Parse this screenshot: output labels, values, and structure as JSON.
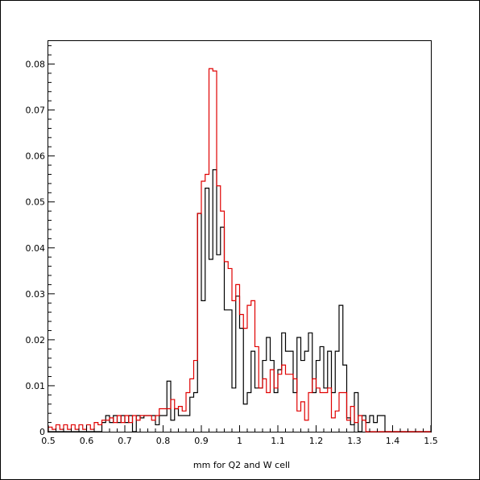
{
  "chart_data": {
    "type": "histogram",
    "title": "",
    "xlabel": "mm for Q2 and W cell",
    "ylabel": "",
    "xlim": [
      0.5,
      1.5
    ],
    "ylim": [
      0,
      0.085
    ],
    "xticks": [
      "0.5",
      "0.6",
      "0.7",
      "0.8",
      "0.9",
      "1",
      "1.1",
      "1.2",
      "1.3",
      "1.4",
      "1.5"
    ],
    "yticks": [
      "0",
      "0.01",
      "0.02",
      "0.03",
      "0.04",
      "0.05",
      "0.06",
      "0.07",
      "0.08"
    ],
    "bin_start": 0.5,
    "bin_width": 0.01,
    "grid": false,
    "legend": "none",
    "series": [
      {
        "color": "#000000",
        "values": [
          0,
          0,
          0,
          0,
          0,
          0,
          0,
          0,
          0,
          0,
          0,
          0,
          0,
          0,
          0.002,
          0.0035,
          0.002,
          0.0035,
          0.002,
          0.0035,
          0.002,
          0.0035,
          0,
          0.0035,
          0.003,
          0.0035,
          0.0035,
          0.0035,
          0.0015,
          0.0035,
          0.0035,
          0.011,
          0.0025,
          0.005,
          0.0035,
          0.0035,
          0.0035,
          0.0075,
          0.0085,
          0.0475,
          0.0285,
          0.053,
          0.0375,
          0.057,
          0.0385,
          0.0445,
          0.0265,
          0.0265,
          0.0095,
          0.0295,
          0.0225,
          0.006,
          0.0085,
          0.0175,
          0.0095,
          0.0095,
          0.0155,
          0.0205,
          0.0155,
          0.0085,
          0.0135,
          0.0215,
          0.0175,
          0.0175,
          0.0085,
          0.0205,
          0.0155,
          0.0175,
          0.0215,
          0.0085,
          0.0155,
          0.0185,
          0.0095,
          0.0175,
          0.0085,
          0.0175,
          0.0275,
          0.0145,
          0.003,
          0.0015,
          0.0085,
          0,
          0.0035,
          0.002,
          0.0035,
          0.002,
          0.0035,
          0.0035,
          0,
          0,
          0,
          0,
          0,
          0,
          0,
          0,
          0,
          0,
          0,
          0
        ]
      },
      {
        "color": "#e00000",
        "values": [
          0.001,
          0.0005,
          0.0015,
          0.0005,
          0.0015,
          0.0005,
          0.0015,
          0.0005,
          0.0015,
          0.0005,
          0.0015,
          0.0005,
          0.002,
          0.0015,
          0.0025,
          0.0025,
          0.003,
          0.002,
          0.0035,
          0.002,
          0.0035,
          0.002,
          0.0035,
          0.0025,
          0.0035,
          0.0035,
          0.0035,
          0.0025,
          0.0035,
          0.005,
          0.005,
          0.005,
          0.007,
          0.005,
          0.0055,
          0.0045,
          0.0085,
          0.0115,
          0.0155,
          0.0475,
          0.0545,
          0.056,
          0.079,
          0.0785,
          0.0535,
          0.048,
          0.037,
          0.0355,
          0.0285,
          0.032,
          0.0255,
          0.0225,
          0.0275,
          0.0285,
          0.0185,
          0.0095,
          0.0115,
          0.0085,
          0.0135,
          0.0095,
          0.0125,
          0.0145,
          0.0125,
          0.0125,
          0.0115,
          0.0045,
          0.0065,
          0.0025,
          0.0085,
          0.0115,
          0.0095,
          0.0085,
          0.0085,
          0.0095,
          0.003,
          0.0045,
          0.0085,
          0.0085,
          0.0025,
          0.0055,
          0.002,
          0.0035,
          0.0025,
          0,
          0,
          0,
          0,
          0,
          0,
          0,
          0,
          0,
          0,
          0,
          0,
          0,
          0,
          0,
          0,
          0
        ]
      }
    ]
  }
}
